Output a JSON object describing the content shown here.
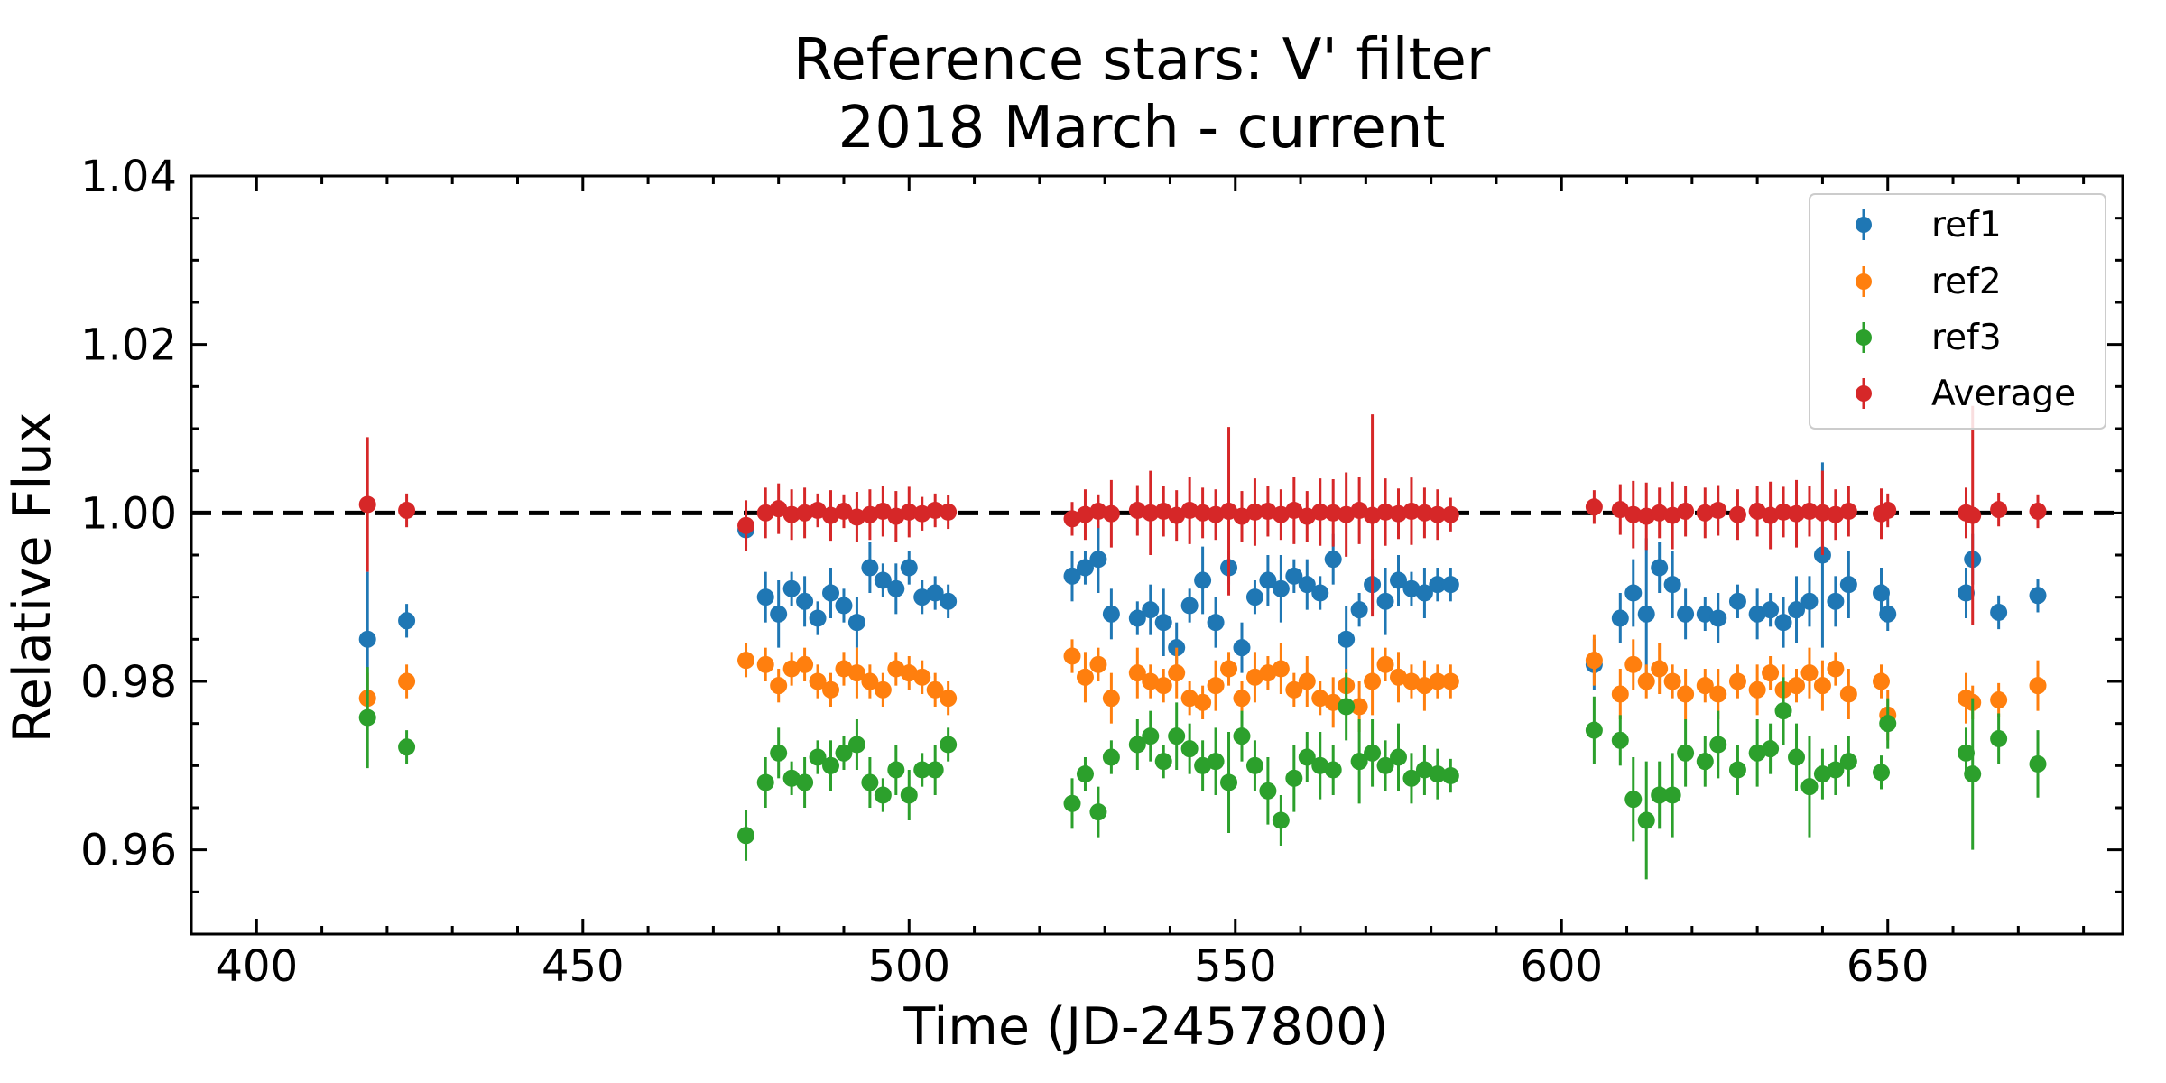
{
  "chart_data": {
    "type": "scatter",
    "title": "Reference stars: V' filter",
    "subtitle": "2018 March - current",
    "xlabel": "Time (JD-2457800)",
    "ylabel": "Relative Flux",
    "xlim": [
      390,
      686
    ],
    "ylim": [
      0.95,
      1.04
    ],
    "xticks": [
      "400",
      "450",
      "500",
      "550",
      "600",
      "650"
    ],
    "yticks": [
      "0.96",
      "0.98",
      "1.00",
      "1.02",
      "1.04"
    ],
    "reference_line": {
      "y": 1.0,
      "style": "dashed",
      "color": "#000000"
    },
    "grid": false,
    "legend_position": "top-right",
    "x": [
      417,
      423,
      475,
      478,
      480,
      482,
      484,
      486,
      488,
      490,
      492,
      494,
      496,
      498,
      500,
      502,
      504,
      506,
      525,
      527,
      529,
      531,
      535,
      537,
      539,
      541,
      543,
      545,
      547,
      549,
      551,
      553,
      555,
      557,
      559,
      561,
      563,
      565,
      567,
      569,
      571,
      573,
      575,
      577,
      579,
      581,
      583,
      605,
      609,
      611,
      613,
      615,
      617,
      619,
      622,
      624,
      627,
      630,
      632,
      634,
      636,
      638,
      640,
      642,
      644,
      649,
      650,
      662,
      663,
      667,
      673
    ],
    "series": [
      {
        "name": "ref1",
        "color": "#1f77b4",
        "values": [
          0.985,
          0.9872,
          0.998,
          0.99,
          0.988,
          0.991,
          0.9895,
          0.9875,
          0.9905,
          0.989,
          0.987,
          0.9935,
          0.992,
          0.991,
          0.9935,
          0.99,
          0.9905,
          0.9895,
          0.9925,
          0.9935,
          0.9945,
          0.988,
          0.9875,
          0.9885,
          0.987,
          0.984,
          0.989,
          0.992,
          0.987,
          0.9935,
          0.984,
          0.99,
          0.992,
          0.991,
          0.9925,
          0.9915,
          0.9905,
          0.9945,
          0.985,
          0.9885,
          0.9915,
          0.9895,
          0.992,
          0.991,
          0.9905,
          0.9915,
          0.9915,
          0.982,
          0.9875,
          0.9905,
          0.988,
          0.9935,
          0.9915,
          0.988,
          0.988,
          0.9875,
          0.9895,
          0.988,
          0.9885,
          0.987,
          0.9885,
          0.9895,
          0.995,
          0.9895,
          0.9915,
          0.9905,
          0.988,
          0.9905,
          0.9945,
          0.9882,
          0.9902
        ],
        "errors": [
          0.008,
          0.002,
          0.002,
          0.003,
          0.004,
          0.002,
          0.003,
          0.002,
          0.003,
          0.002,
          0.003,
          0.003,
          0.002,
          0.003,
          0.002,
          0.002,
          0.002,
          0.002,
          0.003,
          0.002,
          0.004,
          0.003,
          0.002,
          0.003,
          0.004,
          0.003,
          0.002,
          0.004,
          0.003,
          0.002,
          0.003,
          0.002,
          0.003,
          0.004,
          0.002,
          0.003,
          0.002,
          0.003,
          0.004,
          0.002,
          0.003,
          0.004,
          0.003,
          0.002,
          0.003,
          0.002,
          0.002,
          0.003,
          0.003,
          0.004,
          0.009,
          0.003,
          0.004,
          0.003,
          0.002,
          0.003,
          0.002,
          0.003,
          0.002,
          0.003,
          0.004,
          0.003,
          0.011,
          0.003,
          0.004,
          0.003,
          0.002,
          0.003,
          0.003,
          0.002,
          0.002
        ]
      },
      {
        "name": "ref2",
        "color": "#ff7f0e",
        "values": [
          0.978,
          0.98,
          0.9825,
          0.982,
          0.9795,
          0.9815,
          0.982,
          0.98,
          0.979,
          0.9815,
          0.981,
          0.98,
          0.979,
          0.9815,
          0.981,
          0.9805,
          0.979,
          0.978,
          0.983,
          0.9805,
          0.982,
          0.978,
          0.981,
          0.98,
          0.9795,
          0.981,
          0.978,
          0.9775,
          0.9795,
          0.9815,
          0.978,
          0.9805,
          0.981,
          0.9815,
          0.979,
          0.98,
          0.978,
          0.9775,
          0.9795,
          0.977,
          0.98,
          0.982,
          0.9805,
          0.98,
          0.9795,
          0.98,
          0.98,
          0.9825,
          0.9785,
          0.982,
          0.98,
          0.9815,
          0.98,
          0.9785,
          0.9795,
          0.9785,
          0.98,
          0.979,
          0.981,
          0.979,
          0.9795,
          0.981,
          0.9795,
          0.9815,
          0.9785,
          0.98,
          0.976,
          0.978,
          0.9775,
          0.9778,
          0.9795
        ],
        "errors": [
          0.003,
          0.002,
          0.002,
          0.002,
          0.002,
          0.002,
          0.002,
          0.002,
          0.002,
          0.002,
          0.003,
          0.002,
          0.002,
          0.002,
          0.002,
          0.002,
          0.002,
          0.002,
          0.002,
          0.003,
          0.002,
          0.003,
          0.003,
          0.002,
          0.002,
          0.003,
          0.002,
          0.002,
          0.003,
          0.002,
          0.002,
          0.003,
          0.002,
          0.003,
          0.002,
          0.003,
          0.002,
          0.003,
          0.002,
          0.003,
          0.004,
          0.002,
          0.003,
          0.002,
          0.003,
          0.002,
          0.002,
          0.003,
          0.003,
          0.003,
          0.002,
          0.003,
          0.002,
          0.003,
          0.002,
          0.003,
          0.002,
          0.003,
          0.002,
          0.003,
          0.002,
          0.003,
          0.003,
          0.002,
          0.003,
          0.002,
          0.003,
          0.003,
          0.002,
          0.002,
          0.003
        ]
      },
      {
        "name": "ref3",
        "color": "#2ca02c",
        "values": [
          0.9757,
          0.9722,
          0.9617,
          0.968,
          0.9715,
          0.9685,
          0.968,
          0.971,
          0.97,
          0.9715,
          0.9725,
          0.968,
          0.9665,
          0.9695,
          0.9665,
          0.9695,
          0.9695,
          0.9725,
          0.9655,
          0.969,
          0.9645,
          0.971,
          0.9725,
          0.9735,
          0.9705,
          0.9735,
          0.972,
          0.97,
          0.9705,
          0.968,
          0.9735,
          0.97,
          0.967,
          0.9635,
          0.9685,
          0.971,
          0.97,
          0.9695,
          0.977,
          0.9705,
          0.9715,
          0.97,
          0.971,
          0.9685,
          0.9695,
          0.969,
          0.9688,
          0.9742,
          0.973,
          0.966,
          0.9635,
          0.9665,
          0.9665,
          0.9715,
          0.9705,
          0.9725,
          0.9695,
          0.9715,
          0.972,
          0.9765,
          0.971,
          0.9675,
          0.969,
          0.9695,
          0.9705,
          0.9692,
          0.975,
          0.9715,
          0.969,
          0.9732,
          0.9702
        ],
        "errors": [
          0.006,
          0.002,
          0.003,
          0.003,
          0.003,
          0.002,
          0.003,
          0.002,
          0.003,
          0.002,
          0.003,
          0.003,
          0.002,
          0.003,
          0.003,
          0.002,
          0.003,
          0.002,
          0.003,
          0.002,
          0.003,
          0.002,
          0.003,
          0.003,
          0.002,
          0.004,
          0.003,
          0.003,
          0.004,
          0.006,
          0.003,
          0.003,
          0.004,
          0.003,
          0.004,
          0.003,
          0.004,
          0.003,
          0.004,
          0.005,
          0.004,
          0.003,
          0.004,
          0.003,
          0.003,
          0.003,
          0.002,
          0.004,
          0.003,
          0.005,
          0.007,
          0.004,
          0.005,
          0.004,
          0.003,
          0.004,
          0.003,
          0.004,
          0.003,
          0.004,
          0.004,
          0.006,
          0.003,
          0.003,
          0.003,
          0.002,
          0.003,
          0.003,
          0.009,
          0.003,
          0.004
        ]
      },
      {
        "name": "Average",
        "color": "#d62728",
        "values": [
          1.001,
          1.0003,
          0.9985,
          1.0,
          1.0005,
          0.9998,
          1.0,
          1.0003,
          0.9997,
          1.0002,
          0.9995,
          0.9998,
          1.0002,
          0.9996,
          1.0001,
          0.9999,
          1.0003,
          1.0001,
          0.9993,
          0.9998,
          1.0002,
          0.9999,
          1.0003,
          1.0,
          1.0002,
          0.9997,
          1.0003,
          1.0,
          0.9998,
          1.0002,
          0.9996,
          1.0001,
          1.0002,
          0.9998,
          1.0003,
          0.9996,
          1.0001,
          1.0,
          0.9998,
          1.0003,
          0.9997,
          1.0001,
          0.9999,
          1.0002,
          1.0,
          0.9998,
          0.9998,
          1.0007,
          1.0004,
          0.9998,
          0.9996,
          1.0,
          0.9997,
          1.0002,
          1.0,
          1.0003,
          0.9998,
          1.0002,
          0.9997,
          1.0001,
          0.9999,
          1.0002,
          1.0,
          0.9998,
          1.0002,
          0.9999,
          1.0003,
          1.0,
          0.9997,
          1.0004,
          1.0002
        ],
        "errors": [
          0.008,
          0.002,
          0.003,
          0.003,
          0.003,
          0.003,
          0.003,
          0.002,
          0.003,
          0.002,
          0.003,
          0.003,
          0.003,
          0.003,
          0.003,
          0.002,
          0.002,
          0.002,
          0.002,
          0.003,
          0.002,
          0.004,
          0.003,
          0.005,
          0.003,
          0.003,
          0.004,
          0.003,
          0.003,
          0.01,
          0.003,
          0.004,
          0.003,
          0.003,
          0.004,
          0.003,
          0.004,
          0.004,
          0.005,
          0.004,
          0.012,
          0.004,
          0.003,
          0.004,
          0.003,
          0.003,
          0.002,
          0.002,
          0.003,
          0.004,
          0.004,
          0.003,
          0.004,
          0.003,
          0.003,
          0.003,
          0.003,
          0.003,
          0.004,
          0.003,
          0.004,
          0.003,
          0.005,
          0.003,
          0.003,
          0.003,
          0.002,
          0.003,
          0.013,
          0.002,
          0.002
        ]
      }
    ]
  }
}
